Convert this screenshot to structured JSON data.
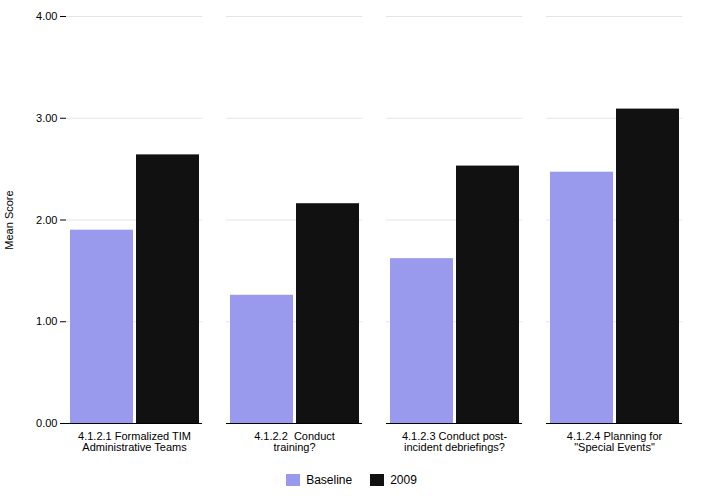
{
  "chart_data": {
    "type": "bar",
    "categories": [
      "4.1.2.1 Formalized TIM\nAdministrative Teams",
      "4.1.2.2  Conduct\ntraining?",
      "4.1.2.3 Conduct post-\nincident debriefings?",
      "4.1.2.4 Planning for\n\"Special Events\""
    ],
    "series": [
      {
        "name": "Baseline",
        "color": "#9999ee",
        "values": [
          1.9,
          1.26,
          1.62,
          2.47
        ]
      },
      {
        "name": "2009",
        "color": "#111111",
        "values": [
          2.64,
          2.16,
          2.53,
          3.09
        ]
      }
    ],
    "ylabel": "Mean Score",
    "ylim": [
      0,
      4.0
    ],
    "yticks": [
      {
        "value": 0.0,
        "label": "0.00"
      },
      {
        "value": 1.0,
        "label": "1.00"
      },
      {
        "value": 2.0,
        "label": "2.00"
      },
      {
        "value": 3.0,
        "label": "3.00"
      },
      {
        "value": 4.0,
        "label": "4.00"
      }
    ],
    "grid": true,
    "legend": "bottom"
  }
}
